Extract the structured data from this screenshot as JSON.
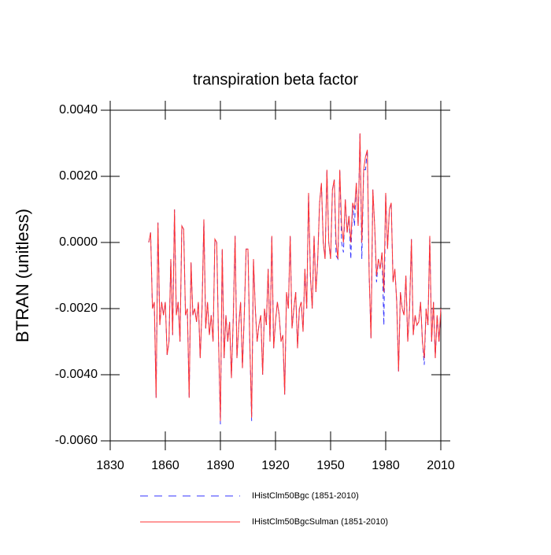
{
  "chart_data": {
    "type": "line",
    "title": "transpiration beta factor",
    "y_label": "BTRAN  (unitless)",
    "x": [
      1851,
      1852,
      1853,
      1854,
      1855,
      1856,
      1857,
      1858,
      1859,
      1860,
      1861,
      1862,
      1863,
      1864,
      1865,
      1866,
      1867,
      1868,
      1869,
      1870,
      1871,
      1872,
      1873,
      1874,
      1875,
      1876,
      1877,
      1878,
      1879,
      1880,
      1881,
      1882,
      1883,
      1884,
      1885,
      1886,
      1887,
      1888,
      1889,
      1890,
      1891,
      1892,
      1893,
      1894,
      1895,
      1896,
      1897,
      1898,
      1899,
      1900,
      1901,
      1902,
      1903,
      1904,
      1905,
      1906,
      1907,
      1908,
      1909,
      1910,
      1911,
      1912,
      1913,
      1914,
      1915,
      1916,
      1917,
      1918,
      1919,
      1920,
      1921,
      1922,
      1923,
      1924,
      1925,
      1926,
      1927,
      1928,
      1929,
      1930,
      1931,
      1932,
      1933,
      1934,
      1935,
      1936,
      1937,
      1938,
      1939,
      1940,
      1941,
      1942,
      1943,
      1944,
      1945,
      1946,
      1947,
      1948,
      1949,
      1950,
      1951,
      1952,
      1953,
      1954,
      1955,
      1956,
      1957,
      1958,
      1959,
      1960,
      1961,
      1962,
      1963,
      1964,
      1965,
      1966,
      1967,
      1968,
      1969,
      1970,
      1971,
      1972,
      1973,
      1974,
      1975,
      1976,
      1977,
      1978,
      1979,
      1980,
      1981,
      1982,
      1983,
      1984,
      1985,
      1986,
      1987,
      1988,
      1989,
      1990,
      1991,
      1992,
      1993,
      1994,
      1995,
      1996,
      1997,
      1998,
      1999,
      2000,
      2001,
      2002,
      2003,
      2004,
      2005,
      2006,
      2007,
      2008,
      2009,
      2010
    ],
    "series": [
      {
        "name": "IHistClm50Bgc (1851-2010)",
        "color": "#3333ff",
        "style": "dashed",
        "values": [
          0,
          0.0003,
          -0.002,
          -0.0018,
          -0.0047,
          0.0006,
          -0.0025,
          -0.0018,
          -0.0022,
          -0.0018,
          -0.0034,
          -0.003,
          -0.0005,
          -0.0028,
          0.001,
          -0.0022,
          -0.0018,
          -0.003,
          0.0005,
          0.0004,
          -0.0022,
          -0.002,
          -0.0047,
          -0.0006,
          -0.0022,
          -0.002,
          -0.0024,
          -0.0018,
          -0.0035,
          -0.002,
          0.0007,
          -0.0026,
          -0.0018,
          -0.0028,
          -0.0022,
          -0.003,
          0.0001,
          0,
          -0.003,
          -0.0055,
          -0.0002,
          -0.0035,
          -0.0022,
          -0.003,
          -0.0024,
          -0.0041,
          -0.0023,
          0.0002,
          -0.0035,
          -0.0025,
          -0.0018,
          -0.0038,
          -0.0022,
          -0.0002,
          -0.0002,
          -0.003,
          -0.0054,
          -0.0005,
          -0.002,
          -0.003,
          -0.0025,
          -0.0022,
          -0.004,
          -0.002,
          -0.0025,
          -0.0008,
          -0.003,
          0.0002,
          -0.0032,
          -0.0024,
          -0.0018,
          -0.0022,
          -0.003,
          -0.0028,
          -0.0046,
          -0.0015,
          -0.002,
          0.0002,
          -0.0026,
          -0.002,
          -0.0015,
          -0.0032,
          -0.002,
          -0.0018,
          -0.0027,
          -0.0008,
          -0.002,
          0.0015,
          -0.001,
          -0.002,
          0.0002,
          -0.0015,
          -0.0005,
          0.0012,
          0.0018,
          0,
          -0.0005,
          0.0022,
          0,
          -0.0005,
          0.0016,
          0.0019,
          -0.0004,
          -0.0005,
          0.0022,
          0,
          -0.0003,
          0.0013,
          0.0003,
          0.0008,
          -0.0005,
          0.0012,
          0.0005,
          0.0018,
          0.0005,
          0.0033,
          -0.0005,
          0.0022,
          0.0022,
          0.0028,
          -0.001,
          -0.0029,
          0.0016,
          0.0005,
          -0.0012,
          -0.0005,
          -0.0008,
          -0.0003,
          -0.0025,
          0.0015,
          -0.0002,
          0.001,
          0.0012,
          -0.0012,
          -0.0008,
          -0.0018,
          -0.0039,
          -0.0015,
          -0.002,
          -0.0022,
          -0.001,
          -0.003,
          -0.002,
          0.0001,
          -0.0028,
          -0.0022,
          -0.0025,
          -0.0024,
          -0.0018,
          -0.003,
          -0.0037,
          -0.002,
          -0.0025,
          0.0002,
          -0.003,
          -0.0018,
          -0.0035,
          -0.0022,
          -0.003,
          -0.002
        ]
      },
      {
        "name": "IHistClm50BgcSulman (1851-2010)",
        "color": "#ff3333",
        "style": "solid",
        "values": [
          0,
          0.0003,
          -0.002,
          -0.0018,
          -0.0047,
          0.0006,
          -0.0025,
          -0.0018,
          -0.0022,
          -0.0018,
          -0.0034,
          -0.003,
          -0.0005,
          -0.0028,
          0.001,
          -0.0022,
          -0.0018,
          -0.003,
          0.0005,
          0.0004,
          -0.0022,
          -0.002,
          -0.0047,
          -0.0006,
          -0.0022,
          -0.002,
          -0.0024,
          -0.0018,
          -0.0035,
          -0.002,
          0.0007,
          -0.0026,
          -0.0018,
          -0.0028,
          -0.0022,
          -0.003,
          0.0001,
          0,
          -0.003,
          -0.0054,
          -0.0002,
          -0.0035,
          -0.0022,
          -0.003,
          -0.0024,
          -0.0041,
          -0.0023,
          0.0002,
          -0.0035,
          -0.0025,
          -0.0018,
          -0.0038,
          -0.0022,
          -0.0002,
          -0.0002,
          -0.003,
          -0.0053,
          -0.0005,
          -0.002,
          -0.003,
          -0.0025,
          -0.0022,
          -0.004,
          -0.002,
          -0.0025,
          -0.0008,
          -0.003,
          0.0002,
          -0.0032,
          -0.0024,
          -0.0018,
          -0.0022,
          -0.003,
          -0.0028,
          -0.0046,
          -0.0015,
          -0.002,
          0.0002,
          -0.0026,
          -0.002,
          -0.0015,
          -0.0032,
          -0.002,
          -0.0018,
          -0.0027,
          -0.0008,
          -0.002,
          0.0015,
          -0.001,
          -0.002,
          0.0002,
          -0.0015,
          -0.0005,
          0.0012,
          0.0018,
          0,
          -0.0005,
          0.0022,
          0,
          -0.0005,
          0.0016,
          0.0019,
          0,
          -0.0005,
          0.0022,
          0.0005,
          0,
          0.0013,
          0.0003,
          0.0008,
          0,
          0.0012,
          0.001,
          0.0018,
          0.0005,
          0.0033,
          0,
          0.0022,
          0.0026,
          0.0028,
          -0.001,
          -0.0029,
          0.0016,
          0.0005,
          -0.001,
          -0.0005,
          -0.0008,
          -0.0003,
          -0.0015,
          0.0015,
          -0.0002,
          0.001,
          0.0012,
          -0.0012,
          -0.0008,
          -0.0018,
          -0.0039,
          -0.0015,
          -0.002,
          -0.0022,
          -0.001,
          -0.003,
          -0.002,
          0.0001,
          -0.0028,
          -0.0022,
          -0.0025,
          -0.0024,
          -0.0018,
          -0.003,
          -0.0035,
          -0.002,
          -0.0025,
          0.0002,
          -0.003,
          -0.0018,
          -0.0035,
          -0.0022,
          -0.003,
          -0.002
        ]
      }
    ],
    "xlim": [
      1830,
      2010
    ],
    "xticks": [
      1830,
      1860,
      1890,
      1920,
      1950,
      1980,
      2010
    ],
    "ylim": [
      -0.006,
      0.004
    ],
    "yticks": [
      {
        "value": -0.006,
        "label": "-0.0060"
      },
      {
        "value": -0.004,
        "label": "-0.0040"
      },
      {
        "value": -0.002,
        "label": "-0.0020"
      },
      {
        "value": 0,
        "label": "0.0000"
      },
      {
        "value": 0.002,
        "label": "0.0020"
      },
      {
        "value": 0.004,
        "label": "0.0040"
      }
    ]
  }
}
